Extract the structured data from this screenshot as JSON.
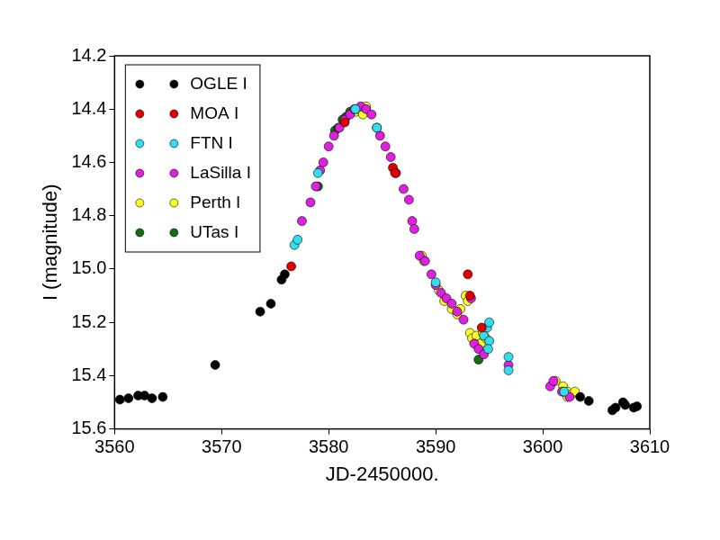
{
  "chart_data": {
    "type": "scatter",
    "x_label": "JD-2450000.",
    "y_label": "I (magnitude)",
    "xlim": [
      3560,
      3610
    ],
    "xticks": [
      3560,
      3570,
      3580,
      3590,
      3600,
      3610
    ],
    "ylim": [
      15.6,
      14.2
    ],
    "yticks": [
      14.2,
      14.4,
      14.6,
      14.8,
      {
        "value": 15,
        "label": "15.0"
      },
      15.2,
      15.4,
      15.6
    ],
    "grid": false,
    "legend": "upper left",
    "marker": "circle",
    "series": [
      {
        "name": "OGLE I",
        "color": "#000000",
        "x": [
          3560.5,
          3561.3,
          3562.2,
          3562.8,
          3563.5,
          3564.5,
          3569.4,
          3573.6,
          3574.6,
          3575.6,
          3575.9,
          3603.5,
          3604.3,
          3606.5,
          3606.8,
          3607.5,
          3607.7,
          3608.5,
          3608.8
        ],
        "values": [
          15.49,
          15.485,
          15.475,
          15.475,
          15.485,
          15.48,
          15.36,
          15.16,
          15.13,
          15.04,
          15.02,
          15.48,
          15.495,
          15.53,
          15.52,
          15.5,
          15.51,
          15.52,
          15.515
        ]
      },
      {
        "name": "MOA I",
        "color": "#e00000",
        "x": [
          3576.5,
          3581.5,
          3586.0,
          3586.2,
          3593.0,
          3593.2,
          3594.3
        ],
        "values": [
          14.99,
          14.45,
          14.62,
          14.64,
          15.02,
          15.1,
          15.22
        ]
      },
      {
        "name": "FTN I",
        "color": "#33ddee",
        "x": [
          3576.8,
          3577.1,
          3579.0,
          3582.5,
          3584.5,
          3590.0,
          3594.5,
          3594.8,
          3595.0,
          3595.0,
          3594.9,
          3596.8,
          3596.8,
          3602.0
        ],
        "values": [
          14.91,
          14.89,
          14.64,
          14.4,
          14.47,
          15.05,
          15.25,
          15.22,
          15.2,
          15.27,
          15.3,
          15.33,
          15.38,
          15.46
        ]
      },
      {
        "name": "LaSilla I",
        "color": "#e020e0",
        "x": [
          3577.5,
          3578.3,
          3578.8,
          3579.2,
          3579.5,
          3580.0,
          3580.5,
          3581.0,
          3581.5,
          3582.0,
          3582.4,
          3583.0,
          3583.5,
          3584.0,
          3584.5,
          3584.8,
          3585.3,
          3585.8,
          3586.3,
          3587.0,
          3587.5,
          3587.8,
          3588.0,
          3588.5,
          3589.0,
          3589.6,
          3590.0,
          3590.5,
          3591.0,
          3591.5,
          3592.0,
          3592.6,
          3593.3,
          3593.6,
          3594.0,
          3594.5,
          3596.8,
          3600.7,
          3601.0,
          3601.8,
          3602.5
        ],
        "values": [
          14.82,
          14.75,
          14.69,
          14.63,
          14.6,
          14.54,
          14.5,
          14.47,
          14.44,
          14.42,
          14.4,
          14.39,
          14.4,
          14.42,
          14.47,
          14.5,
          14.54,
          14.58,
          14.64,
          14.7,
          14.74,
          14.82,
          14.85,
          14.95,
          14.97,
          15.02,
          15.06,
          15.09,
          15.11,
          15.13,
          15.16,
          15.19,
          15.11,
          15.28,
          15.3,
          15.32,
          15.36,
          15.44,
          15.42,
          15.46,
          15.48
        ]
      },
      {
        "name": "Perth I",
        "color": "#ffff20",
        "x": [
          3582.5,
          3582.8,
          3583.2,
          3583.5,
          3588.7,
          3588.9,
          3590.3,
          3590.8,
          3591.5,
          3592.0,
          3592.3,
          3592.8,
          3593.0,
          3593.2,
          3593.4,
          3593.8,
          3594.2,
          3594.4,
          3594.7,
          3601.2,
          3601.9,
          3602.3,
          3602.7,
          3602.3,
          3603.0
        ],
        "values": [
          14.41,
          14.4,
          14.42,
          14.39,
          14.95,
          14.97,
          15.08,
          15.12,
          15.15,
          15.17,
          15.15,
          15.1,
          15.12,
          15.24,
          15.26,
          15.25,
          15.28,
          15.24,
          15.26,
          15.42,
          15.44,
          15.46,
          15.47,
          15.48,
          15.46
        ]
      },
      {
        "name": "UTas I",
        "color": "#107010",
        "x": [
          3579.0,
          3580.6,
          3580.9,
          3581.3,
          3581.6,
          3582.0,
          3582.8,
          3594.0
        ],
        "values": [
          14.69,
          14.48,
          14.47,
          14.44,
          14.43,
          14.41,
          14.4,
          15.34
        ]
      }
    ]
  }
}
